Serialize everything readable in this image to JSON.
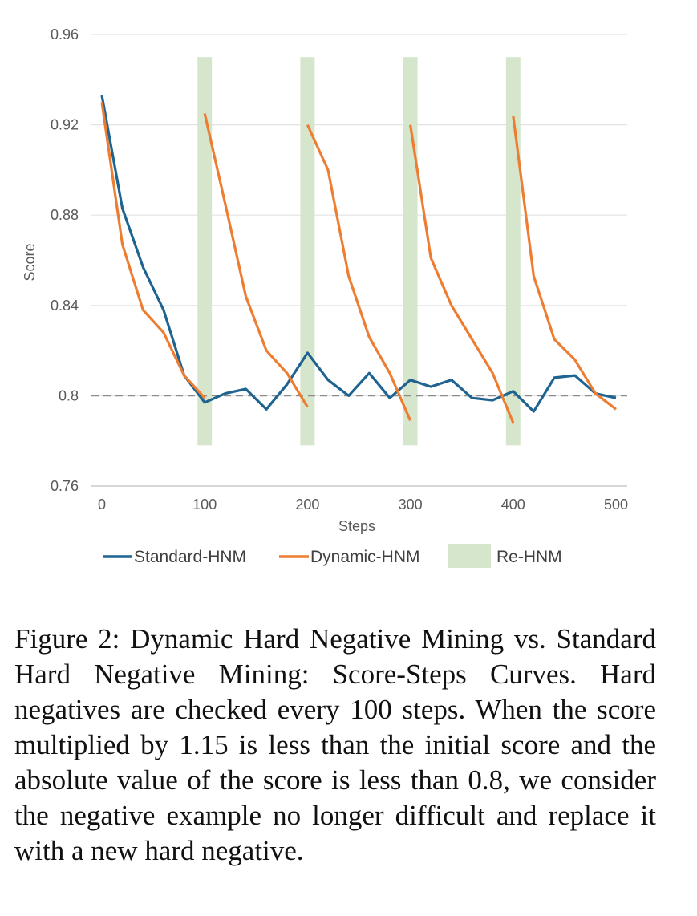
{
  "chart_data": {
    "type": "line",
    "xlabel": "Steps",
    "ylabel": "Score",
    "xlim": [
      0,
      500
    ],
    "ylim": [
      0.76,
      0.96
    ],
    "x_ticks": [
      "0",
      "100",
      "200",
      "300",
      "400",
      "500"
    ],
    "y_ticks": [
      "0.96",
      "0.92",
      "0.88",
      "0.84",
      "0.8",
      "0.76"
    ],
    "grid": "horizontal",
    "legend_position": "bottom",
    "reference_line": 0.8,
    "series": [
      {
        "name": "Standard-HNM",
        "color": "#1f6391",
        "points": [
          [
            0,
            0.933
          ],
          [
            20,
            0.883
          ],
          [
            40,
            0.857
          ],
          [
            60,
            0.838
          ],
          [
            80,
            0.809
          ],
          [
            100,
            0.797
          ],
          [
            120,
            0.801
          ],
          [
            140,
            0.803
          ],
          [
            160,
            0.794
          ],
          [
            180,
            0.805
          ],
          [
            200,
            0.819
          ],
          [
            220,
            0.807
          ],
          [
            240,
            0.8
          ],
          [
            260,
            0.81
          ],
          [
            280,
            0.799
          ],
          [
            300,
            0.807
          ],
          [
            320,
            0.804
          ],
          [
            340,
            0.807
          ],
          [
            360,
            0.799
          ],
          [
            380,
            0.798
          ],
          [
            400,
            0.802
          ],
          [
            420,
            0.793
          ],
          [
            440,
            0.808
          ],
          [
            460,
            0.809
          ],
          [
            480,
            0.801
          ],
          [
            500,
            0.799
          ]
        ]
      },
      {
        "name": "Dynamic-HNM",
        "color": "#ed7d31",
        "segments": [
          [
            [
              0,
              0.93
            ],
            [
              20,
              0.867
            ],
            [
              40,
              0.838
            ],
            [
              60,
              0.828
            ],
            [
              80,
              0.809
            ],
            [
              100,
              0.799
            ]
          ],
          [
            [
              100,
              0.925
            ],
            [
              120,
              0.885
            ],
            [
              140,
              0.844
            ],
            [
              160,
              0.82
            ],
            [
              180,
              0.81
            ],
            [
              200,
              0.795
            ]
          ],
          [
            [
              200,
              0.92
            ],
            [
              220,
              0.9
            ],
            [
              240,
              0.853
            ],
            [
              260,
              0.826
            ],
            [
              280,
              0.81
            ],
            [
              300,
              0.789
            ]
          ],
          [
            [
              300,
              0.92
            ],
            [
              320,
              0.861
            ],
            [
              340,
              0.84
            ],
            [
              360,
              0.825
            ],
            [
              380,
              0.81
            ],
            [
              400,
              0.788
            ]
          ],
          [
            [
              400,
              0.924
            ],
            [
              420,
              0.853
            ],
            [
              440,
              0.825
            ],
            [
              460,
              0.816
            ],
            [
              480,
              0.801
            ],
            [
              500,
              0.794
            ]
          ]
        ]
      }
    ],
    "bands": {
      "name": "Re-HNM",
      "color": "#d5e6cd",
      "x": [
        100,
        200,
        300,
        400
      ],
      "width_steps": 14,
      "y_range": [
        0.778,
        0.95
      ]
    }
  },
  "caption": "Figure 2: Dynamic Hard Negative Mining vs. Standard Hard Negative Mining: Score-Steps Curves.  Hard negatives are checked every 100 steps. When the score multiplied by 1.15 is less than the initial score and the absolute value of the score is less than 0.8, we consider the negative example no longer difficult and replace it with a new hard negative."
}
